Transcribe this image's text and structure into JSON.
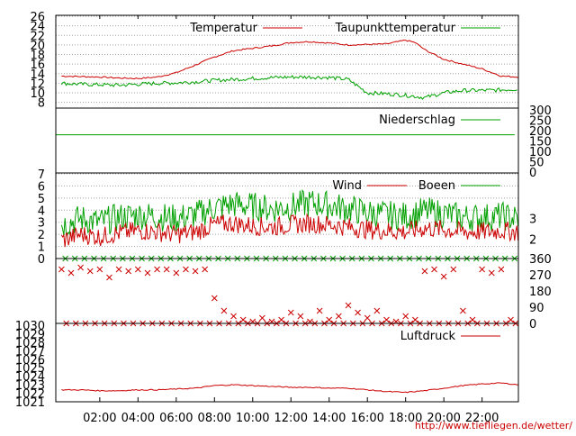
{
  "source_url": "http://www.tiefliegen.de/wetter/",
  "x_axis": {
    "range_hours": [
      -0.3,
      23.9
    ],
    "ticks": [
      {
        "value": 2,
        "label": "02:00"
      },
      {
        "value": 4,
        "label": "04:00"
      },
      {
        "value": 6,
        "label": "06:00"
      },
      {
        "value": 8,
        "label": "08:00"
      },
      {
        "value": 10,
        "label": "10:00"
      },
      {
        "value": 12,
        "label": "12:00"
      },
      {
        "value": 14,
        "label": "14:00"
      },
      {
        "value": 16,
        "label": "16:00"
      },
      {
        "value": 18,
        "label": "18:00"
      },
      {
        "value": 20,
        "label": "20:00"
      },
      {
        "value": 22,
        "label": "22:00"
      }
    ]
  },
  "colors": {
    "red": "#cc0000",
    "green": "#00a000",
    "grid": "#a0a0a0",
    "axis": "#000000"
  },
  "chart_data": [
    {
      "type": "line",
      "panel": "temperature",
      "ylim": [
        7,
        26
      ],
      "yticks": [
        8,
        10,
        12,
        14,
        16,
        18,
        20,
        22,
        24,
        26
      ],
      "grid": true,
      "legend_position": "top",
      "series": [
        {
          "name": "Temperatur",
          "color": "red",
          "x": [
            0,
            1,
            2,
            3,
            4,
            5,
            6,
            7,
            8,
            9,
            10,
            11,
            12,
            13,
            14,
            15,
            16,
            17,
            18,
            18.5,
            19,
            20,
            21,
            22,
            23,
            23.9
          ],
          "values": [
            13.5,
            13.4,
            13.3,
            13.1,
            13.0,
            13.3,
            14.2,
            15.8,
            17.5,
            18.8,
            19.3,
            19.8,
            20.5,
            20.7,
            20.4,
            20.0,
            20.1,
            20.2,
            21.0,
            20.5,
            19.0,
            17.0,
            16.0,
            15.0,
            13.5,
            13.3
          ]
        },
        {
          "name": "Taupunkttemperatur",
          "color": "green",
          "x": [
            0,
            1,
            2,
            3,
            4,
            5,
            6,
            7,
            8,
            9,
            10,
            11,
            12,
            13,
            14,
            15,
            16,
            17,
            18,
            19,
            20,
            21,
            22,
            23,
            23.9
          ],
          "values": [
            12.0,
            11.8,
            11.7,
            11.6,
            11.8,
            12.0,
            12.1,
            12.3,
            12.6,
            12.8,
            13.0,
            13.2,
            13.3,
            13.3,
            13.2,
            12.8,
            10.0,
            9.8,
            9.5,
            9.0,
            10.0,
            10.5,
            10.5,
            10.6,
            10.8
          ]
        }
      ]
    },
    {
      "type": "line",
      "panel": "precipitation",
      "ylim": [
        0,
        300
      ],
      "yticks_right": [
        0,
        50,
        100,
        150,
        200,
        250,
        300
      ],
      "legend_position": "top",
      "series": [
        {
          "name": "Niederschlag",
          "color": "green",
          "x": [
            -0.3,
            23.9
          ],
          "values": [
            180,
            180
          ]
        }
      ]
    },
    {
      "type": "line",
      "panel": "wind",
      "ylim": [
        0,
        7
      ],
      "yticks": [
        0,
        1,
        2,
        3,
        4,
        5,
        6,
        7
      ],
      "yticks_right": [
        {
          "value": 1.6,
          "label": "2"
        },
        {
          "value": 3.3,
          "label": "3"
        }
      ],
      "legend_position": "top",
      "series": [
        {
          "name": "Wind",
          "color": "red",
          "x": [
            0,
            1,
            2,
            3,
            4,
            5,
            6,
            7,
            8,
            9,
            10,
            11,
            12,
            13,
            14,
            15,
            16,
            17,
            18,
            19,
            20,
            21,
            22,
            23,
            23.9
          ],
          "values": [
            1.5,
            2.0,
            1.8,
            2.1,
            2.3,
            2.2,
            2.0,
            2.2,
            2.8,
            2.9,
            2.7,
            2.6,
            2.8,
            2.9,
            2.8,
            2.6,
            2.4,
            2.3,
            2.2,
            2.5,
            2.4,
            2.2,
            2.2,
            2.3,
            2.2
          ]
        },
        {
          "name": "Boeen",
          "color": "green",
          "x": [
            0,
            1,
            2,
            3,
            4,
            5,
            6,
            7,
            8,
            9,
            10,
            11,
            12,
            13,
            14,
            15,
            16,
            17,
            18,
            19,
            20,
            21,
            22,
            23,
            23.9
          ],
          "values": [
            2.8,
            3.3,
            3.0,
            3.4,
            3.6,
            3.5,
            3.3,
            3.6,
            4.2,
            4.5,
            4.3,
            4.1,
            4.3,
            4.6,
            4.4,
            4.1,
            3.8,
            3.6,
            3.5,
            3.9,
            3.7,
            3.4,
            3.4,
            3.5,
            3.3
          ]
        }
      ]
    },
    {
      "type": "scatter",
      "panel": "wind_direction",
      "ylim": [
        0,
        360
      ],
      "yticks_right": [
        0,
        90,
        180,
        270,
        360
      ],
      "series": [
        {
          "color_upper": "green",
          "color_lower": "red",
          "x": [
            0.0,
            0.5,
            1.0,
            1.5,
            2.0,
            2.5,
            3.0,
            3.5,
            4.0,
            4.5,
            5.0,
            5.5,
            6.0,
            6.5,
            7.0,
            7.5,
            8.0,
            8.5,
            9.0,
            9.5,
            10.0,
            10.5,
            11.0,
            11.5,
            12.0,
            12.5,
            13.0,
            13.5,
            14.0,
            14.5,
            15.0,
            15.5,
            16.0,
            16.5,
            17.0,
            17.5,
            18.0,
            18.5,
            19.0,
            19.5,
            20.0,
            20.5,
            21.0,
            21.5,
            22.0,
            22.5,
            23.0,
            23.5
          ],
          "values": [
            300,
            280,
            310,
            290,
            300,
            255,
            300,
            290,
            300,
            280,
            300,
            300,
            280,
            300,
            290,
            300,
            140,
            70,
            40,
            20,
            10,
            30,
            10,
            20,
            60,
            40,
            10,
            70,
            20,
            40,
            100,
            60,
            30,
            70,
            20,
            10,
            40,
            20,
            290,
            300,
            260,
            300,
            70,
            20,
            300,
            280,
            300,
            20
          ]
        }
      ]
    },
    {
      "type": "line",
      "panel": "pressure",
      "ylim": [
        1021,
        1030
      ],
      "yticks": [
        1021,
        1022,
        1023,
        1024,
        1025,
        1026,
        1027,
        1028,
        1029,
        1030
      ],
      "legend_position": "top",
      "series": [
        {
          "name": "Luftdruck",
          "color": "red",
          "x": [
            0,
            1,
            2,
            3,
            4,
            5,
            6,
            7,
            8,
            9,
            10,
            11,
            12,
            13,
            14,
            15,
            16,
            17,
            18,
            19,
            20,
            21,
            22,
            23,
            23.9
          ],
          "values": [
            1022.4,
            1022.4,
            1022.3,
            1022.3,
            1022.4,
            1022.4,
            1022.5,
            1022.6,
            1022.9,
            1023.0,
            1022.9,
            1022.8,
            1022.7,
            1022.7,
            1022.6,
            1022.6,
            1022.4,
            1022.2,
            1022.1,
            1022.3,
            1022.6,
            1022.9,
            1023.1,
            1023.2,
            1023.0
          ]
        }
      ]
    }
  ]
}
